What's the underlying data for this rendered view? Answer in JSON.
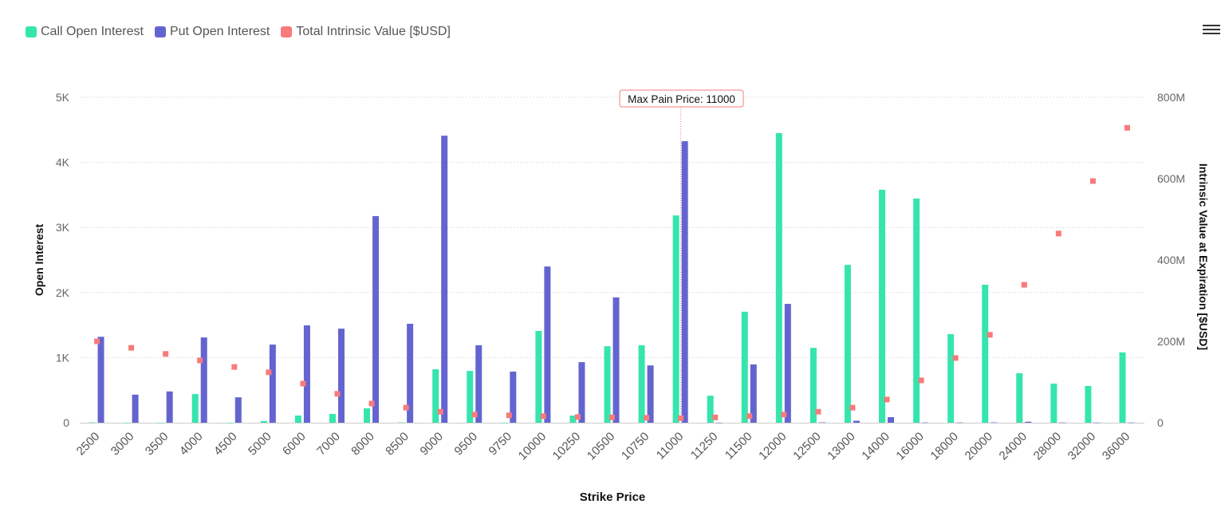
{
  "colors": {
    "call": "#36e5ae",
    "put": "#6464d0",
    "intrinsic": "#f77b7b"
  },
  "menu_icon": "hamburger-icon",
  "chart_data": {
    "type": "bar",
    "title": "",
    "xlabel": "Strike Price",
    "ylabel": "Open Interest",
    "y2label": "Intrinsic Value at Expiration [$USD]",
    "ylim": [
      0,
      5000
    ],
    "y2lim": [
      0,
      800000000
    ],
    "yticks": [
      "0",
      "1K",
      "2K",
      "3K",
      "4K",
      "5K"
    ],
    "y2ticks": [
      "0",
      "200M",
      "400M",
      "600M",
      "800M"
    ],
    "grid": true,
    "legend_position": "top-left",
    "legend": [
      "Call Open Interest",
      "Put Open Interest",
      "Total Intrinsic Value [$USD]"
    ],
    "annotation": "Max Pain Price: 11000",
    "max_pain_strike": "11000",
    "categories": [
      "2500",
      "3000",
      "3500",
      "4000",
      "4500",
      "5000",
      "6000",
      "7000",
      "8000",
      "8500",
      "9000",
      "9500",
      "9750",
      "10000",
      "10250",
      "10500",
      "10750",
      "11000",
      "11250",
      "11500",
      "12000",
      "12500",
      "13000",
      "14000",
      "16000",
      "18000",
      "20000",
      "24000",
      "28000",
      "32000",
      "36000"
    ],
    "series": [
      {
        "name": "Call Open Interest",
        "type": "bar",
        "axis": "left",
        "values": [
          5,
          0,
          0,
          440,
          0,
          25,
          110,
          135,
          220,
          5,
          820,
          795,
          0,
          1410,
          110,
          1175,
          1190,
          3185,
          415,
          1705,
          4450,
          1150,
          2425,
          3580,
          3445,
          1360,
          2120,
          760,
          600,
          565,
          1080
        ]
      },
      {
        "name": "Put Open Interest",
        "type": "bar",
        "axis": "left",
        "values": [
          1320,
          430,
          480,
          1310,
          390,
          1200,
          1495,
          1445,
          3175,
          1520,
          4410,
          1190,
          785,
          2400,
          930,
          1925,
          880,
          4325,
          0,
          895,
          1825,
          5,
          30,
          85,
          3,
          3,
          5,
          15,
          3,
          2,
          3
        ]
      },
      {
        "name": "Total Intrinsic Value [$USD]",
        "type": "scatter",
        "axis": "right",
        "values": [
          200000000,
          184000000,
          169000000,
          153000000,
          137000000,
          124000000,
          96000000,
          71000000,
          47000000,
          37000000,
          27000000,
          20000000,
          18000000,
          16000000,
          14000000,
          13000000,
          12000000,
          11000000,
          13000000,
          16000000,
          20000000,
          27000000,
          37000000,
          57000000,
          104000000,
          159000000,
          216000000,
          339000000,
          465000000,
          594000000,
          725000000
        ]
      }
    ]
  }
}
